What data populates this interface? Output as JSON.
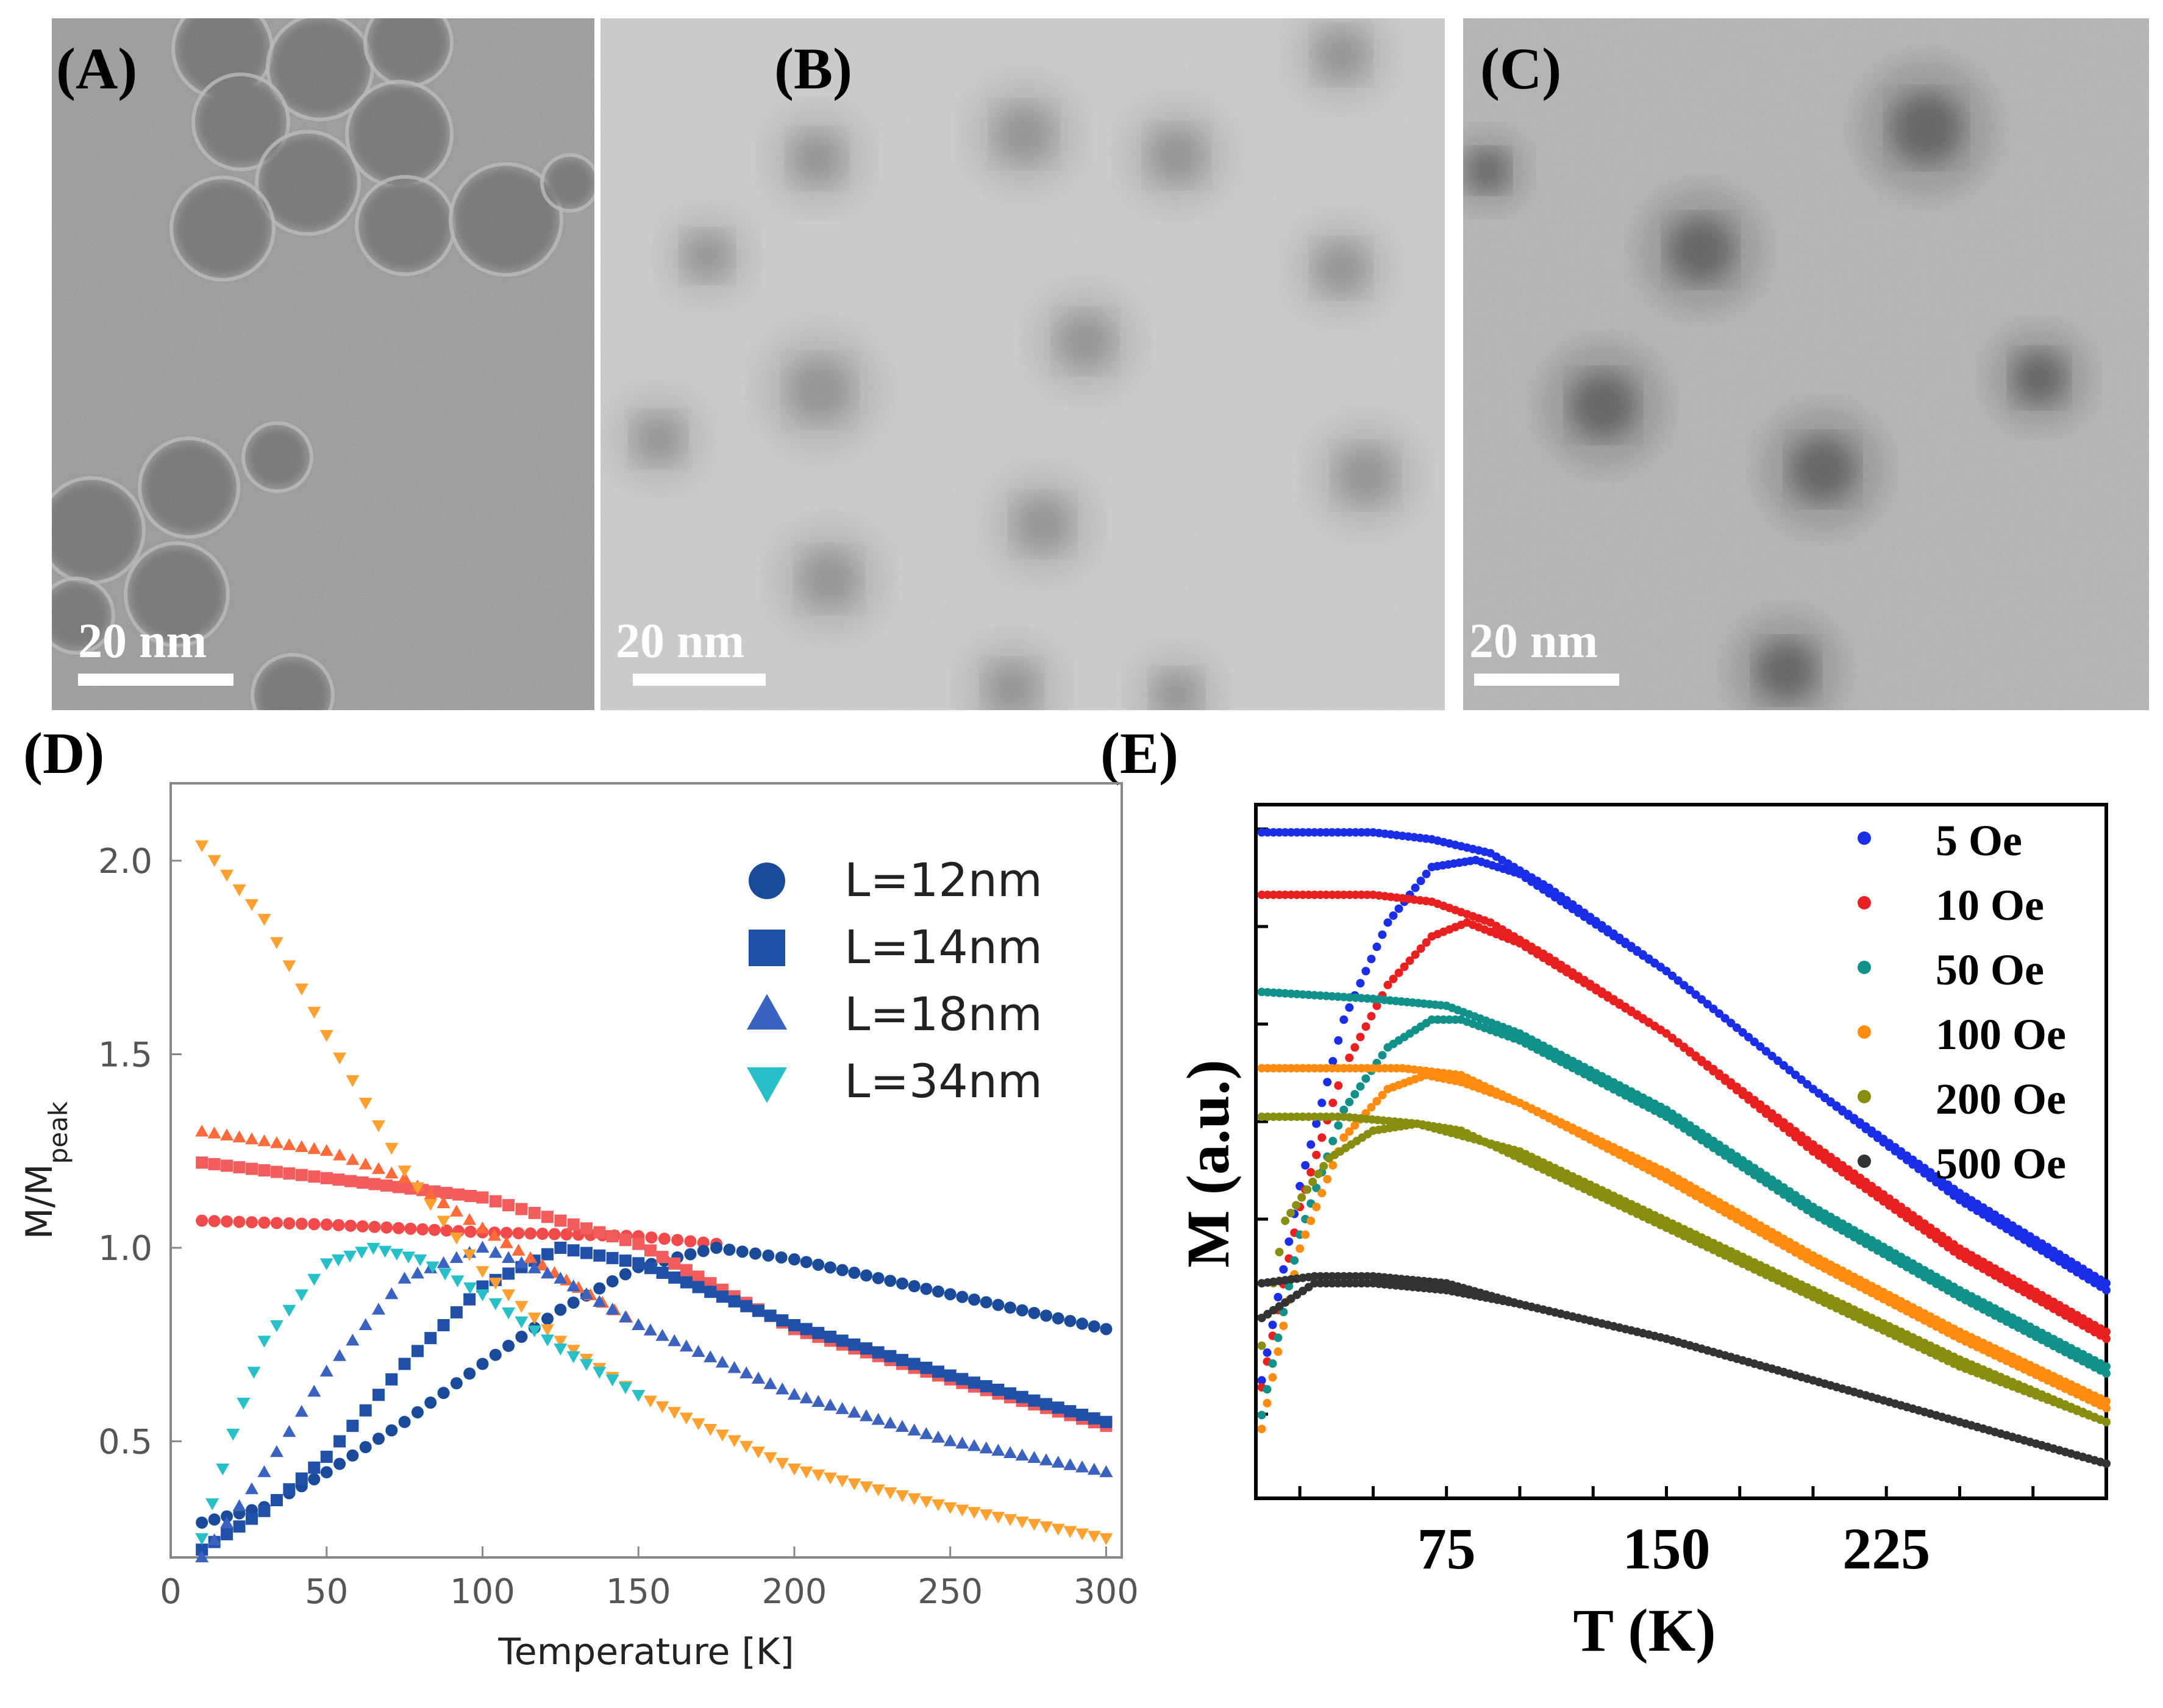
{
  "panels": {
    "A": {
      "label": "(A)",
      "scalebar": "20 nm"
    },
    "B": {
      "label": "(B)",
      "scalebar": "20 nm"
    },
    "C": {
      "label": "(C)",
      "scalebar": "20 nm"
    },
    "D": {
      "label": "(D)"
    },
    "E": {
      "label": "(E)"
    }
  },
  "chart_data": [
    {
      "panel": "D",
      "type": "scatter",
      "xlabel": "Temperature [K]",
      "ylabel": "M/M",
      "ylabel_sub": "peak",
      "xlim": [
        0,
        305
      ],
      "ylim": [
        0.2,
        2.2
      ],
      "xticks": [
        "0",
        "50",
        "100",
        "150",
        "200",
        "250",
        "300"
      ],
      "yticks": [
        "0.5",
        "1.0",
        "1.5",
        "2.0"
      ],
      "legend_position": "top-right",
      "series": [
        {
          "name": "L=12nm",
          "marker": "circle",
          "color": "#1a4a9a",
          "zfc": [
            [
              10,
              0.29
            ],
            [
              30,
              0.33
            ],
            [
              50,
              0.42
            ],
            [
              75,
              0.55
            ],
            [
              100,
              0.7
            ],
            [
              125,
              0.84
            ],
            [
              150,
              0.95
            ],
            [
              175,
              1.0
            ],
            [
              200,
              0.97
            ],
            [
              250,
              0.88
            ],
            [
              300,
              0.79
            ]
          ],
          "fc": [
            [
              10,
              1.07
            ],
            [
              50,
              1.06
            ],
            [
              100,
              1.04
            ],
            [
              150,
              1.03
            ],
            [
              175,
              1.01
            ]
          ]
        },
        {
          "name": "L=14nm",
          "marker": "square",
          "color": "#2050a8",
          "zfc": [
            [
              10,
              0.22
            ],
            [
              30,
              0.32
            ],
            [
              50,
              0.46
            ],
            [
              75,
              0.7
            ],
            [
              100,
              0.9
            ],
            [
              125,
              1.0
            ],
            [
              150,
              0.96
            ],
            [
              200,
              0.8
            ],
            [
              250,
              0.67
            ],
            [
              300,
              0.55
            ]
          ],
          "fc": [
            [
              10,
              1.22
            ],
            [
              50,
              1.18
            ],
            [
              100,
              1.13
            ],
            [
              125,
              1.07
            ],
            [
              150,
              1.01
            ],
            [
              200,
              0.79
            ],
            [
              250,
              0.66
            ],
            [
              300,
              0.54
            ]
          ]
        },
        {
          "name": "L=18nm",
          "marker": "triangle-up",
          "color": "#3a62c0",
          "zfc": [
            [
              10,
              0.2
            ],
            [
              30,
              0.42
            ],
            [
              50,
              0.68
            ],
            [
              75,
              0.92
            ],
            [
              100,
              1.0
            ],
            [
              125,
              0.92
            ],
            [
              150,
              0.8
            ],
            [
              200,
              0.62
            ],
            [
              250,
              0.5
            ],
            [
              300,
              0.42
            ]
          ],
          "fc": [
            [
              10,
              1.3
            ],
            [
              50,
              1.25
            ],
            [
              75,
              1.18
            ],
            [
              100,
              1.05
            ],
            [
              150,
              0.8
            ],
            [
              200,
              0.62
            ],
            [
              250,
              0.5
            ],
            [
              300,
              0.42
            ]
          ]
        },
        {
          "name": "L=34nm",
          "marker": "triangle-down",
          "color": "#28c0c8",
          "zfc": [
            [
              10,
              0.25
            ],
            [
              20,
              0.52
            ],
            [
              30,
              0.76
            ],
            [
              50,
              0.96
            ],
            [
              65,
              1.0
            ],
            [
              80,
              0.97
            ],
            [
              100,
              0.88
            ],
            [
              125,
              0.74
            ],
            [
              150,
              0.62
            ]
          ],
          "fc": [
            [
              10,
              2.04
            ],
            [
              30,
              1.85
            ],
            [
              50,
              1.55
            ],
            [
              75,
              1.2
            ],
            [
              100,
              0.94
            ],
            [
              125,
              0.76
            ],
            [
              150,
              0.62
            ],
            [
              200,
              0.43
            ],
            [
              250,
              0.33
            ],
            [
              300,
              0.25
            ]
          ]
        }
      ]
    },
    {
      "panel": "E",
      "type": "scatter",
      "xlabel": "T (K)",
      "ylabel": "M (a.u.)",
      "xlim": [
        10,
        300
      ],
      "xticks": [
        "75",
        "150",
        "225"
      ],
      "legend_position": "top-right",
      "series": [
        {
          "name": "5 Oe",
          "color": "#1a2ee8",
          "zfc": [
            [
              12,
              0.17
            ],
            [
              25,
              0.45
            ],
            [
              40,
              0.69
            ],
            [
              55,
              0.83
            ],
            [
              70,
              0.91
            ],
            [
              85,
              0.92
            ],
            [
              100,
              0.9
            ],
            [
              150,
              0.76
            ],
            [
              200,
              0.59
            ],
            [
              250,
              0.43
            ],
            [
              300,
              0.3
            ]
          ],
          "fc": [
            [
              12,
              0.96
            ],
            [
              50,
              0.96
            ],
            [
              70,
              0.95
            ],
            [
              90,
              0.93
            ],
            [
              110,
              0.88
            ],
            [
              150,
              0.76
            ],
            [
              200,
              0.59
            ],
            [
              250,
              0.44
            ],
            [
              300,
              0.31
            ]
          ]
        },
        {
          "name": "10 Oe",
          "color": "#e82020",
          "zfc": [
            [
              12,
              0.16
            ],
            [
              25,
              0.42
            ],
            [
              40,
              0.62
            ],
            [
              55,
              0.74
            ],
            [
              70,
              0.81
            ],
            [
              82,
              0.83
            ],
            [
              100,
              0.8
            ],
            [
              150,
              0.67
            ],
            [
              200,
              0.5
            ],
            [
              250,
              0.35
            ],
            [
              300,
              0.23
            ]
          ],
          "fc": [
            [
              12,
              0.87
            ],
            [
              50,
              0.87
            ],
            [
              70,
              0.86
            ],
            [
              90,
              0.83
            ],
            [
              110,
              0.78
            ],
            [
              150,
              0.67
            ],
            [
              200,
              0.51
            ],
            [
              250,
              0.36
            ],
            [
              300,
              0.24
            ]
          ]
        },
        {
          "name": "50 Oe",
          "color": "#12908a",
          "zfc": [
            [
              12,
              0.12
            ],
            [
              25,
              0.38
            ],
            [
              40,
              0.56
            ],
            [
              55,
              0.65
            ],
            [
              70,
              0.69
            ],
            [
              80,
              0.69
            ],
            [
              100,
              0.66
            ],
            [
              150,
              0.55
            ],
            [
              200,
              0.41
            ],
            [
              250,
              0.29
            ],
            [
              300,
              0.18
            ]
          ],
          "fc": [
            [
              12,
              0.73
            ],
            [
              50,
              0.72
            ],
            [
              75,
              0.71
            ],
            [
              100,
              0.67
            ],
            [
              150,
              0.56
            ],
            [
              200,
              0.42
            ],
            [
              250,
              0.3
            ],
            [
              300,
              0.19
            ]
          ]
        },
        {
          "name": "100 Oe",
          "color": "#ff8c10",
          "zfc": [
            [
              12,
              0.1
            ],
            [
              25,
              0.36
            ],
            [
              40,
              0.52
            ],
            [
              55,
              0.59
            ],
            [
              68,
              0.61
            ],
            [
              80,
              0.6
            ],
            [
              100,
              0.57
            ],
            [
              150,
              0.46
            ],
            [
              200,
              0.34
            ],
            [
              250,
              0.23
            ],
            [
              300,
              0.13
            ]
          ],
          "fc": [
            [
              12,
              0.62
            ],
            [
              40,
              0.62
            ],
            [
              60,
              0.62
            ],
            [
              80,
              0.61
            ],
            [
              100,
              0.57
            ],
            [
              150,
              0.47
            ],
            [
              200,
              0.35
            ],
            [
              250,
              0.24
            ],
            [
              300,
              0.14
            ]
          ]
        },
        {
          "name": "200 Oe",
          "color": "#8a8e10",
          "zfc": [
            [
              12,
              0.22
            ],
            [
              20,
              0.4
            ],
            [
              35,
              0.49
            ],
            [
              50,
              0.53
            ],
            [
              65,
              0.54
            ],
            [
              80,
              0.53
            ],
            [
              100,
              0.49
            ],
            [
              150,
              0.39
            ],
            [
              200,
              0.29
            ],
            [
              250,
              0.19
            ],
            [
              300,
              0.11
            ]
          ],
          "fc": [
            [
              12,
              0.55
            ],
            [
              40,
              0.55
            ],
            [
              65,
              0.54
            ],
            [
              100,
              0.5
            ],
            [
              150,
              0.4
            ],
            [
              200,
              0.3
            ],
            [
              250,
              0.2
            ],
            [
              300,
              0.11
            ]
          ]
        },
        {
          "name": "500 Oe",
          "color": "#333333",
          "zfc": [
            [
              12,
              0.26
            ],
            [
              30,
              0.31
            ],
            [
              50,
              0.31
            ],
            [
              75,
              0.3
            ],
            [
              100,
              0.28
            ],
            [
              150,
              0.23
            ],
            [
              200,
              0.17
            ],
            [
              250,
              0.11
            ],
            [
              300,
              0.05
            ]
          ],
          "fc": [
            [
              12,
              0.31
            ],
            [
              30,
              0.32
            ],
            [
              50,
              0.32
            ],
            [
              75,
              0.31
            ],
            [
              100,
              0.28
            ],
            [
              150,
              0.23
            ],
            [
              200,
              0.17
            ],
            [
              250,
              0.11
            ],
            [
              300,
              0.05
            ]
          ]
        }
      ]
    }
  ]
}
